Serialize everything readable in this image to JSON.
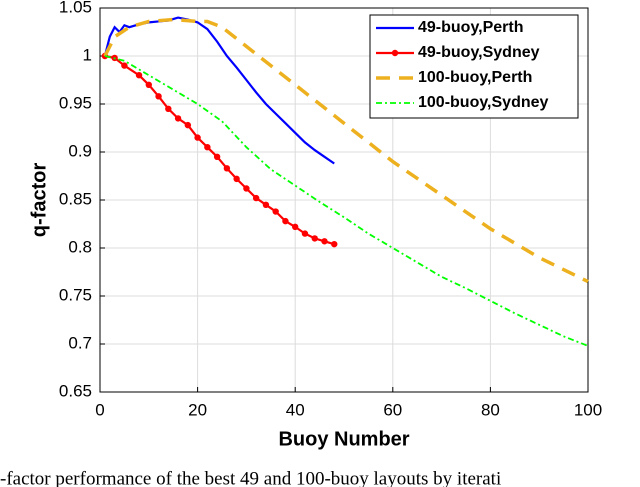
{
  "chart_data": {
    "type": "line",
    "xlabel": "Buoy Number",
    "ylabel": "q-factor",
    "caption": "-factor performance of the best 49 and 100-buoy layouts by iterati",
    "xlim": [
      0,
      100
    ],
    "xticks": [
      0,
      20,
      40,
      60,
      80,
      100
    ],
    "ylim": [
      0.65,
      1.05
    ],
    "yticks": [
      0.65,
      0.7,
      0.75,
      0.8,
      0.85,
      0.9,
      0.95,
      1,
      1.05
    ],
    "grid": true,
    "legend": "upper right",
    "series": [
      {
        "name": "49-buoy,Perth",
        "color": "#0000ff",
        "dash": "solid",
        "x": [
          1,
          2,
          3,
          4,
          5,
          6,
          8,
          10,
          12,
          14,
          16,
          18,
          20,
          22,
          24,
          26,
          28,
          30,
          32,
          34,
          36,
          38,
          40,
          42,
          44,
          46,
          48
        ],
        "values": [
          1,
          1.02,
          1.03,
          1.025,
          1.032,
          1.03,
          1.033,
          1.035,
          1.036,
          1.037,
          1.04,
          1.038,
          1.035,
          1.028,
          1.015,
          1.0,
          0.988,
          0.975,
          0.962,
          0.95,
          0.94,
          0.93,
          0.92,
          0.91,
          0.902,
          0.895,
          0.888
        ]
      },
      {
        "name": "49-buoy,Sydney",
        "color": "#ff0000",
        "dash": "solid",
        "marker": "circle",
        "x": [
          1,
          3,
          5,
          8,
          10,
          12,
          14,
          16,
          18,
          20,
          22,
          24,
          26,
          28,
          30,
          32,
          34,
          36,
          38,
          40,
          42,
          44,
          46,
          48
        ],
        "values": [
          1.0,
          0.998,
          0.99,
          0.98,
          0.97,
          0.958,
          0.945,
          0.935,
          0.928,
          0.915,
          0.905,
          0.895,
          0.883,
          0.872,
          0.862,
          0.852,
          0.845,
          0.838,
          0.828,
          0.822,
          0.815,
          0.81,
          0.807,
          0.804
        ]
      },
      {
        "name": "100-buoy,Perth",
        "color": "#edb120",
        "dash": "dashed",
        "x": [
          1,
          3,
          6,
          10,
          15,
          20,
          22,
          25,
          30,
          40,
          50,
          60,
          70,
          80,
          90,
          100
        ],
        "values": [
          1.0,
          1.02,
          1.03,
          1.036,
          1.038,
          1.036,
          1.036,
          1.03,
          1.01,
          0.97,
          0.93,
          0.89,
          0.855,
          0.82,
          0.79,
          0.765
        ]
      },
      {
        "name": "100-buoy,Sydney",
        "color": "#00ff00",
        "dash": "dashdot",
        "x": [
          1,
          5,
          10,
          15,
          20,
          25,
          30,
          35,
          40,
          45,
          50,
          55,
          60,
          65,
          70,
          75,
          80,
          85,
          90,
          95,
          100
        ],
        "values": [
          1.0,
          0.995,
          0.98,
          0.965,
          0.95,
          0.932,
          0.905,
          0.882,
          0.865,
          0.848,
          0.832,
          0.815,
          0.8,
          0.785,
          0.77,
          0.758,
          0.745,
          0.732,
          0.72,
          0.708,
          0.698
        ]
      }
    ]
  }
}
